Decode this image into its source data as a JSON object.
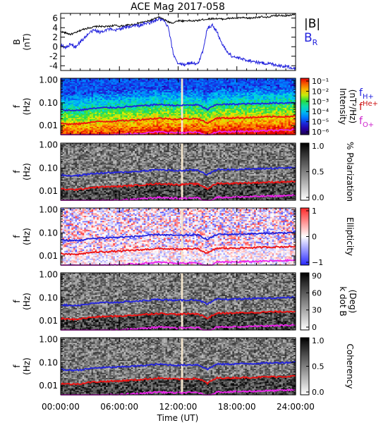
{
  "chart_data": {
    "type": "spectrogram",
    "title": "ACE Mag 2017-058",
    "x_axis": {
      "label": "Time (UT)",
      "range_hours": [
        0,
        24
      ],
      "ticks": [
        "00:00:00",
        "06:00:00",
        "12:00:00",
        "18:00:00",
        "24:00:00"
      ]
    },
    "data_gap_hours": [
      12.3,
      12.5
    ],
    "panels": [
      {
        "id": "b-field",
        "type": "line",
        "ylabel": "B",
        "yunits": "(nT)",
        "ylim": [
          -5,
          7
        ],
        "yticks": [
          -4,
          -2,
          0,
          2,
          4,
          6
        ],
        "legend": [
          {
            "name": "|B|",
            "color": "#000000"
          },
          {
            "name": "B",
            "sub": "R",
            "color": "#2222dd"
          }
        ],
        "series": [
          {
            "name": "|B|",
            "color": "#000000",
            "x": [
              0,
              0.5,
              1,
              1.5,
              2,
              2.5,
              3,
              3.5,
              4,
              4.5,
              5,
              5.5,
              6,
              6.5,
              7,
              7.5,
              8,
              8.5,
              9,
              9.5,
              10,
              10.5,
              11,
              11.5,
              12,
              12.5,
              13,
              13.5,
              14,
              14.5,
              15,
              15.5,
              16,
              16.5,
              17,
              17.5,
              18,
              18.5,
              19,
              19.5,
              20,
              20.5,
              21,
              21.5,
              22,
              22.5,
              23,
              23.5,
              24
            ],
            "values": [
              3.2,
              2.9,
              2.6,
              2.9,
              3.4,
              3.8,
              4.0,
              4.2,
              4.3,
              4.2,
              4.3,
              4.5,
              4.3,
              4.4,
              4.6,
              4.7,
              5.0,
              5.2,
              5.4,
              5.8,
              6.2,
              5.8,
              5.2,
              5.0,
              5.5,
              5.4,
              5.5,
              5.4,
              5.5,
              5.7,
              5.8,
              5.9,
              5.9,
              5.8,
              5.9,
              6.0,
              6.0,
              6.1,
              6.0,
              6.0,
              6.2,
              6.3,
              6.1,
              6.4,
              6.5,
              6.6,
              6.5,
              6.7,
              6.9
            ]
          },
          {
            "name": "B_R",
            "color": "#2222dd",
            "x": [
              0,
              0.5,
              1,
              1.5,
              2,
              2.5,
              3,
              3.5,
              4,
              4.5,
              5,
              5.5,
              6,
              6.5,
              7,
              7.5,
              8,
              8.5,
              9,
              9.5,
              10,
              10.5,
              11,
              11.5,
              12,
              12.5,
              13,
              13.5,
              14,
              14.5,
              15,
              15.5,
              16,
              16.5,
              17,
              17.5,
              18,
              18.5,
              19,
              19.5,
              20,
              20.5,
              21,
              21.5,
              22,
              22.5,
              23,
              23.5,
              24
            ],
            "values": [
              0.5,
              -0.3,
              0.5,
              0.0,
              1.0,
              2.0,
              3.0,
              3.5,
              3.0,
              3.5,
              3.7,
              3.3,
              3.8,
              4.0,
              4.2,
              4.5,
              4.4,
              4.8,
              5.0,
              5.3,
              5.8,
              5.5,
              4.0,
              -1.5,
              -3.5,
              -3.8,
              -3.5,
              -3.3,
              -3.8,
              -1.0,
              4.0,
              4.5,
              3.0,
              0.5,
              -1.0,
              -2.0,
              -2.3,
              -2.6,
              -2.8,
              -3.0,
              -3.2,
              -3.4,
              -3.5,
              -3.6,
              -3.8,
              -4.0,
              -4.1,
              -4.3,
              -4.6
            ]
          }
        ]
      },
      {
        "id": "intensity",
        "type": "heatmap",
        "ylabel": "f",
        "yunits": "(Hz)",
        "yscale": "log",
        "ylim": [
          0.004,
          1.2
        ],
        "yticks": [
          "1.00",
          "0.10",
          "0.01"
        ],
        "colorbar": {
          "label": "Intensity",
          "units": "(nT²/Hz)",
          "scale": "log",
          "range": [
            5e-07,
            0.3
          ],
          "ticks": [
            "10⁻¹",
            "10⁻²",
            "10⁻³",
            "10⁻⁴",
            "10⁻⁵",
            "10⁻⁶"
          ],
          "palette": "rainbow"
        },
        "side_labels": [
          {
            "text": "f",
            "sub": "H+",
            "color": "#2222dd"
          },
          {
            "text": "f",
            "sup": "He+",
            "color": "#cc1111"
          },
          {
            "text": "f",
            "sub": "O+",
            "color": "#cc22cc"
          }
        ]
      },
      {
        "id": "polarization",
        "type": "heatmap",
        "ylabel": "f",
        "yunits": "(Hz)",
        "yscale": "log",
        "ylim": [
          0.004,
          1.2
        ],
        "yticks": [
          "1.00",
          "0.10",
          "0.01"
        ],
        "colorbar": {
          "label": "% Polarization",
          "range": [
            0,
            1
          ],
          "ticks": [
            "1.0",
            "0.5",
            "0.0"
          ],
          "palette": "gray"
        }
      },
      {
        "id": "ellipticity",
        "type": "heatmap",
        "ylabel": "f",
        "yunits": "(Hz)",
        "yscale": "log",
        "ylim": [
          0.004,
          1.2
        ],
        "yticks": [
          "1.00",
          "0.10",
          "0.01"
        ],
        "colorbar": {
          "label": "Ellipticity",
          "range": [
            -1,
            1
          ],
          "ticks": [
            "1",
            "0",
            "−1"
          ],
          "palette": "bluewhitered"
        }
      },
      {
        "id": "k-dot-b",
        "type": "heatmap",
        "ylabel": "f",
        "yunits": "(Hz)",
        "yscale": "log",
        "ylim": [
          0.004,
          1.2
        ],
        "yticks": [
          "1.00",
          "0.10",
          "0.01"
        ],
        "colorbar": {
          "label": "k dot B",
          "units": "(Deg)",
          "range": [
            0,
            90
          ],
          "ticks": [
            "90",
            "60",
            "30",
            "0"
          ],
          "palette": "gray"
        }
      },
      {
        "id": "coherency",
        "type": "heatmap",
        "ylabel": "f",
        "yunits": "(Hz)",
        "yscale": "log",
        "ylim": [
          0.004,
          1.2
        ],
        "yticks": [
          "1.00",
          "0.10",
          "0.01"
        ],
        "colorbar": {
          "label": "Coherency",
          "range": [
            0,
            1
          ],
          "ticks": [
            "1.0",
            "0.5",
            "0.0"
          ],
          "palette": "gray"
        }
      }
    ],
    "gyrofrequency_lines": {
      "x": [
        0,
        1,
        2,
        3,
        4,
        5,
        6,
        7,
        8,
        9,
        10,
        11,
        12,
        13,
        14,
        15,
        16,
        17,
        18,
        19,
        20,
        21,
        22,
        23,
        24
      ],
      "series": [
        {
          "name": "f_H+",
          "color": "#2222dd",
          "values": [
            0.05,
            0.046,
            0.048,
            0.055,
            0.06,
            0.062,
            0.064,
            0.068,
            0.072,
            0.078,
            0.085,
            0.08,
            0.076,
            0.08,
            0.081,
            0.05,
            0.086,
            0.085,
            0.088,
            0.09,
            0.092,
            0.095,
            0.098,
            0.1,
            0.105
          ]
        },
        {
          "name": "f_He+",
          "color": "#ee1111",
          "values": [
            0.0125,
            0.0115,
            0.012,
            0.014,
            0.015,
            0.0155,
            0.016,
            0.017,
            0.018,
            0.0195,
            0.021,
            0.02,
            0.019,
            0.02,
            0.0202,
            0.0125,
            0.0215,
            0.0212,
            0.022,
            0.0225,
            0.023,
            0.024,
            0.0245,
            0.025,
            0.026
          ]
        },
        {
          "name": "f_O+",
          "color": "#ee22ee",
          "values": [
            0.0031,
            0.0029,
            0.003,
            0.0035,
            0.0038,
            0.0039,
            0.004,
            0.0043,
            0.0045,
            0.0049,
            0.0053,
            0.005,
            0.0048,
            0.005,
            0.0051,
            0.0031,
            0.0054,
            0.0053,
            0.0055,
            0.0056,
            0.0058,
            0.006,
            0.0061,
            0.0063,
            0.0066
          ]
        }
      ]
    }
  }
}
